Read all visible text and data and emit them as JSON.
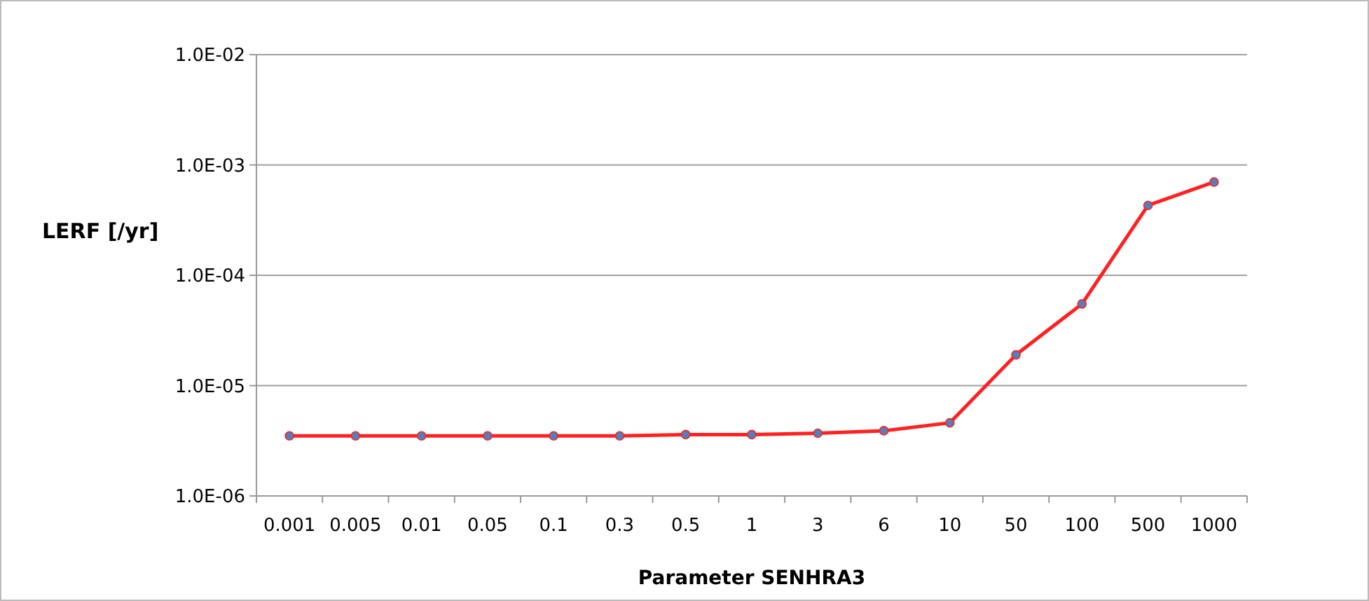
{
  "chart_data": {
    "type": "line",
    "xlabel": "Parameter SENHRA3",
    "ylabel": "LERF [/yr]",
    "categories": [
      "0.001",
      "0.005",
      "0.01",
      "0.05",
      "0.1",
      "0.3",
      "0.5",
      "1",
      "3",
      "6",
      "10",
      "50",
      "100",
      "500",
      "1000"
    ],
    "series": [
      {
        "color": "#ff2020",
        "values": [
          3.5e-06,
          3.5e-06,
          3.5e-06,
          3.5e-06,
          3.5e-06,
          3.5e-06,
          3.6e-06,
          3.6e-06,
          3.7e-06,
          3.9e-06,
          4.6e-06,
          1.9e-05,
          5.5e-05,
          0.00043,
          0.0007
        ]
      }
    ],
    "log": "y",
    "ylim": [
      1e-06,
      0.01
    ],
    "yticks": [
      {
        "value": 1e-06,
        "label": "1.0E-06"
      },
      {
        "value": 1e-05,
        "label": "1.0E-05"
      },
      {
        "value": 0.0001,
        "label": "1.0E-04"
      },
      {
        "value": 0.001,
        "label": "1.0E-03"
      },
      {
        "value": 0.01,
        "label": "1.0E-02"
      }
    ],
    "grid": "y",
    "marker": "circle",
    "line_style": "solid"
  }
}
